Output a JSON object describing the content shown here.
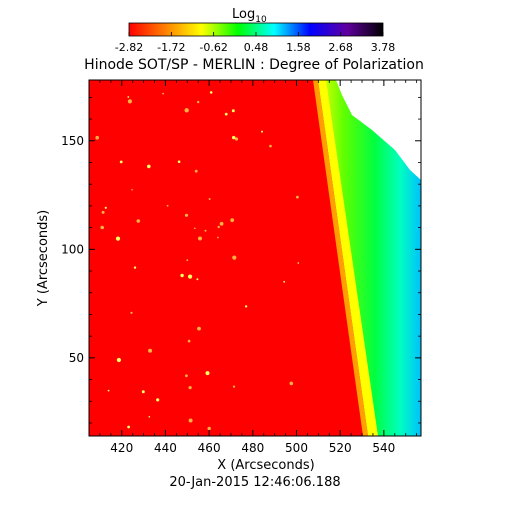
{
  "chart_data": {
    "type": "heatmap",
    "title": "Hinode SOT/SP - MERLIN : Degree of Polarization",
    "xlabel": "X (Arcseconds)",
    "ylabel": "Y (Arcseconds)",
    "xlim": [
      405,
      557
    ],
    "ylim": [
      14,
      178
    ],
    "x_ticks": [
      420,
      440,
      460,
      480,
      500,
      520,
      540
    ],
    "y_ticks": [
      50,
      100,
      150
    ],
    "colorbar": {
      "title": "Log",
      "title_subscript": "10",
      "ticks": [
        "-2.82",
        "-1.72",
        "-0.62",
        "0.48",
        "1.58",
        "2.68",
        "3.78"
      ],
      "range": [
        -2.82,
        3.78
      ],
      "colors": [
        "#ff0000",
        "#ff8000",
        "#ffff00",
        "#00ff00",
        "#00ffff",
        "#0000ff",
        "#6000a0",
        "#000000"
      ]
    },
    "background_color": "#ff0000",
    "bright_spot_color": "#ffff40",
    "limb_x_bottom": 535,
    "limb_x_top": 510
  },
  "footer": {
    "timestamp": "20-Jan-2015 12:46:06.188"
  }
}
